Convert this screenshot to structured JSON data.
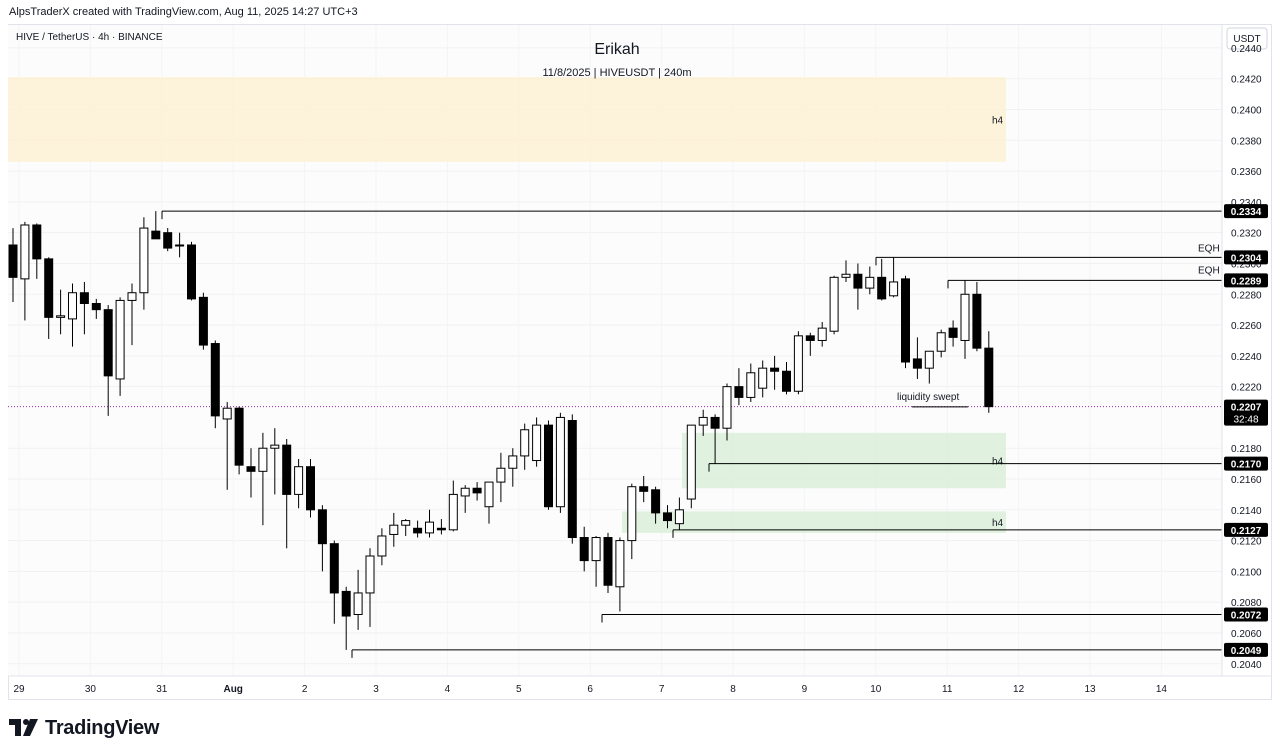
{
  "header": {
    "attribution": "AlpsTraderX created with TradingView.com, Aug 11, 2025 14:27 UTC+3"
  },
  "chart_data": {
    "type": "candlestick",
    "symbol_line": "HIVE / TetherUS · 4h · BINANCE",
    "title": "Erikah",
    "subtitle": "11/8/2025 | HIVEUSDT | 240m",
    "currency_label": "USDT",
    "y_ticks": [
      "0.2440",
      "0.2420",
      "0.2400",
      "0.2380",
      "0.2360",
      "0.2340",
      "0.2320",
      "0.2300",
      "0.2280",
      "0.2260",
      "0.2240",
      "0.2220",
      "0.2180",
      "0.2160",
      "0.2140",
      "0.2120",
      "0.2100",
      "0.2080",
      "0.2060",
      "0.2040"
    ],
    "x_ticks": [
      "29",
      "30",
      "31",
      "Aug",
      "2",
      "3",
      "4",
      "5",
      "6",
      "7",
      "8",
      "9",
      "10",
      "11",
      "12",
      "13",
      "14"
    ],
    "x_start_date": "2025-07-29",
    "ylim": [
      0.2034,
      0.2451
    ],
    "colors": {
      "up": "#ffffff",
      "down": "#000000",
      "outline": "#000000",
      "supply_zone": "#fdf0d4",
      "demand_zone": "#dcefd9",
      "last_price_line": "#9c27b0"
    },
    "candles": [
      {
        "o": 0.2312,
        "h": 0.2323,
        "l": 0.2275,
        "c": 0.2291
      },
      {
        "o": 0.229,
        "h": 0.2327,
        "l": 0.2263,
        "c": 0.2325
      },
      {
        "o": 0.2325,
        "h": 0.2326,
        "l": 0.229,
        "c": 0.2303
      },
      {
        "o": 0.2303,
        "h": 0.2304,
        "l": 0.2251,
        "c": 0.2265
      },
      {
        "o": 0.2265,
        "h": 0.2283,
        "l": 0.2254,
        "c": 0.2266
      },
      {
        "o": 0.2264,
        "h": 0.2287,
        "l": 0.2246,
        "c": 0.2281
      },
      {
        "o": 0.2281,
        "h": 0.2288,
        "l": 0.2254,
        "c": 0.2274
      },
      {
        "o": 0.2274,
        "h": 0.2277,
        "l": 0.2264,
        "c": 0.227
      },
      {
        "o": 0.227,
        "h": 0.2273,
        "l": 0.2201,
        "c": 0.2227
      },
      {
        "o": 0.2225,
        "h": 0.2278,
        "l": 0.2214,
        "c": 0.2276
      },
      {
        "o": 0.2276,
        "h": 0.2287,
        "l": 0.2247,
        "c": 0.2281
      },
      {
        "o": 0.2281,
        "h": 0.233,
        "l": 0.227,
        "c": 0.2323
      },
      {
        "o": 0.2321,
        "h": 0.2334,
        "l": 0.2316,
        "c": 0.2316
      },
      {
        "o": 0.232,
        "h": 0.2323,
        "l": 0.2308,
        "c": 0.231
      },
      {
        "o": 0.2312,
        "h": 0.232,
        "l": 0.2304,
        "c": 0.2312
      },
      {
        "o": 0.2312,
        "h": 0.2314,
        "l": 0.2276,
        "c": 0.2277
      },
      {
        "o": 0.2278,
        "h": 0.2281,
        "l": 0.2244,
        "c": 0.2247
      },
      {
        "o": 0.2248,
        "h": 0.225,
        "l": 0.2193,
        "c": 0.2201
      },
      {
        "o": 0.2199,
        "h": 0.221,
        "l": 0.2153,
        "c": 0.2206
      },
      {
        "o": 0.2206,
        "h": 0.2207,
        "l": 0.2163,
        "c": 0.2169
      },
      {
        "o": 0.2168,
        "h": 0.218,
        "l": 0.2148,
        "c": 0.2165
      },
      {
        "o": 0.2165,
        "h": 0.219,
        "l": 0.213,
        "c": 0.218
      },
      {
        "o": 0.218,
        "h": 0.2193,
        "l": 0.215,
        "c": 0.2182
      },
      {
        "o": 0.2182,
        "h": 0.2186,
        "l": 0.2115,
        "c": 0.215
      },
      {
        "o": 0.215,
        "h": 0.2173,
        "l": 0.2141,
        "c": 0.2168
      },
      {
        "o": 0.2168,
        "h": 0.2173,
        "l": 0.2135,
        "c": 0.214
      },
      {
        "o": 0.214,
        "h": 0.2143,
        "l": 0.21,
        "c": 0.2118
      },
      {
        "o": 0.2118,
        "h": 0.212,
        "l": 0.2066,
        "c": 0.2086
      },
      {
        "o": 0.2087,
        "h": 0.209,
        "l": 0.2049,
        "c": 0.2071
      },
      {
        "o": 0.2072,
        "h": 0.2101,
        "l": 0.2062,
        "c": 0.2086
      },
      {
        "o": 0.2086,
        "h": 0.2115,
        "l": 0.2064,
        "c": 0.211
      },
      {
        "o": 0.211,
        "h": 0.2128,
        "l": 0.2104,
        "c": 0.2123
      },
      {
        "o": 0.2124,
        "h": 0.2138,
        "l": 0.2116,
        "c": 0.213
      },
      {
        "o": 0.213,
        "h": 0.2134,
        "l": 0.2123,
        "c": 0.2133
      },
      {
        "o": 0.2128,
        "h": 0.2133,
        "l": 0.2122,
        "c": 0.2125
      },
      {
        "o": 0.2125,
        "h": 0.214,
        "l": 0.2122,
        "c": 0.2132
      },
      {
        "o": 0.2128,
        "h": 0.2134,
        "l": 0.2124,
        "c": 0.2127
      },
      {
        "o": 0.2127,
        "h": 0.2159,
        "l": 0.2126,
        "c": 0.215
      },
      {
        "o": 0.2149,
        "h": 0.2156,
        "l": 0.2138,
        "c": 0.2154
      },
      {
        "o": 0.2154,
        "h": 0.2158,
        "l": 0.2146,
        "c": 0.2151
      },
      {
        "o": 0.2142,
        "h": 0.2158,
        "l": 0.2131,
        "c": 0.2158
      },
      {
        "o": 0.2158,
        "h": 0.2177,
        "l": 0.2145,
        "c": 0.2167
      },
      {
        "o": 0.2167,
        "h": 0.218,
        "l": 0.2155,
        "c": 0.2175
      },
      {
        "o": 0.2175,
        "h": 0.2196,
        "l": 0.2166,
        "c": 0.2192
      },
      {
        "o": 0.2172,
        "h": 0.22,
        "l": 0.2168,
        "c": 0.2195
      },
      {
        "o": 0.2195,
        "h": 0.2198,
        "l": 0.214,
        "c": 0.2142
      },
      {
        "o": 0.2142,
        "h": 0.2203,
        "l": 0.2138,
        "c": 0.22
      },
      {
        "o": 0.2198,
        "h": 0.2202,
        "l": 0.2118,
        "c": 0.2122
      },
      {
        "o": 0.2122,
        "h": 0.2129,
        "l": 0.21,
        "c": 0.2107
      },
      {
        "o": 0.2107,
        "h": 0.2123,
        "l": 0.209,
        "c": 0.2122
      },
      {
        "o": 0.2122,
        "h": 0.2125,
        "l": 0.2086,
        "c": 0.2091
      },
      {
        "o": 0.209,
        "h": 0.2122,
        "l": 0.2074,
        "c": 0.212
      },
      {
        "o": 0.212,
        "h": 0.2157,
        "l": 0.2108,
        "c": 0.2155
      },
      {
        "o": 0.2155,
        "h": 0.2162,
        "l": 0.2145,
        "c": 0.2152
      },
      {
        "o": 0.2153,
        "h": 0.2155,
        "l": 0.2131,
        "c": 0.2138
      },
      {
        "o": 0.2138,
        "h": 0.2143,
        "l": 0.2128,
        "c": 0.2133
      },
      {
        "o": 0.2131,
        "h": 0.2148,
        "l": 0.2127,
        "c": 0.214
      },
      {
        "o": 0.2147,
        "h": 0.2195,
        "l": 0.2141,
        "c": 0.2195
      },
      {
        "o": 0.2195,
        "h": 0.2205,
        "l": 0.2188,
        "c": 0.22
      },
      {
        "o": 0.22,
        "h": 0.2202,
        "l": 0.217,
        "c": 0.2193
      },
      {
        "o": 0.2193,
        "h": 0.2222,
        "l": 0.2185,
        "c": 0.222
      },
      {
        "o": 0.222,
        "h": 0.2232,
        "l": 0.2208,
        "c": 0.2213
      },
      {
        "o": 0.2213,
        "h": 0.2235,
        "l": 0.221,
        "c": 0.2229
      },
      {
        "o": 0.2219,
        "h": 0.2237,
        "l": 0.2213,
        "c": 0.2232
      },
      {
        "o": 0.2232,
        "h": 0.224,
        "l": 0.2218,
        "c": 0.223
      },
      {
        "o": 0.223,
        "h": 0.2236,
        "l": 0.2215,
        "c": 0.2217
      },
      {
        "o": 0.2217,
        "h": 0.2256,
        "l": 0.2215,
        "c": 0.2253
      },
      {
        "o": 0.2253,
        "h": 0.2255,
        "l": 0.224,
        "c": 0.225
      },
      {
        "o": 0.225,
        "h": 0.2262,
        "l": 0.2246,
        "c": 0.2258
      },
      {
        "o": 0.2256,
        "h": 0.2292,
        "l": 0.2254,
        "c": 0.2291
      },
      {
        "o": 0.2291,
        "h": 0.2302,
        "l": 0.2288,
        "c": 0.2293
      },
      {
        "o": 0.2293,
        "h": 0.23,
        "l": 0.227,
        "c": 0.2284
      },
      {
        "o": 0.2284,
        "h": 0.2298,
        "l": 0.228,
        "c": 0.2291
      },
      {
        "o": 0.2291,
        "h": 0.2303,
        "l": 0.2276,
        "c": 0.2277
      },
      {
        "o": 0.2279,
        "h": 0.2304,
        "l": 0.2278,
        "c": 0.2288
      },
      {
        "o": 0.229,
        "h": 0.2292,
        "l": 0.2232,
        "c": 0.2236
      },
      {
        "o": 0.2238,
        "h": 0.2252,
        "l": 0.2225,
        "c": 0.2232
      },
      {
        "o": 0.2232,
        "h": 0.2241,
        "l": 0.2222,
        "c": 0.2243
      },
      {
        "o": 0.2243,
        "h": 0.2257,
        "l": 0.2239,
        "c": 0.2255
      },
      {
        "o": 0.2258,
        "h": 0.2263,
        "l": 0.2246,
        "c": 0.2252
      },
      {
        "o": 0.225,
        "h": 0.2289,
        "l": 0.2238,
        "c": 0.228
      },
      {
        "o": 0.228,
        "h": 0.2288,
        "l": 0.2243,
        "c": 0.2245
      },
      {
        "o": 0.2245,
        "h": 0.2256,
        "l": 0.2203,
        "c": 0.2207
      }
    ],
    "price_labels": [
      {
        "value": "0.2334",
        "price": 0.2334
      },
      {
        "value": "0.2304",
        "price": 0.2304
      },
      {
        "value": "0.2289",
        "price": 0.2289
      },
      {
        "value": "0.2207",
        "price": 0.2207
      },
      {
        "value": "0.2170",
        "price": 0.217
      },
      {
        "value": "0.2127",
        "price": 0.2127
      },
      {
        "value": "0.2072",
        "price": 0.2072
      },
      {
        "value": "0.2049",
        "price": 0.2049
      }
    ],
    "countdown": "32:48",
    "zones": [
      {
        "label": "h4",
        "kind": "supply",
        "top": 0.2421,
        "bottom": 0.2366
      },
      {
        "label": "h4",
        "kind": "demand",
        "top": 0.219,
        "bottom": 0.2154
      },
      {
        "label": "h4",
        "kind": "demand",
        "top": 0.2139,
        "bottom": 0.2125
      }
    ],
    "annotations": [
      {
        "text": "EQH",
        "anchor": "0.2304"
      },
      {
        "text": "EQH",
        "anchor": "0.2289"
      },
      {
        "text": "liquidity swept",
        "anchor": "0.2207"
      }
    ]
  },
  "footer": {
    "brand": "TradingView"
  }
}
